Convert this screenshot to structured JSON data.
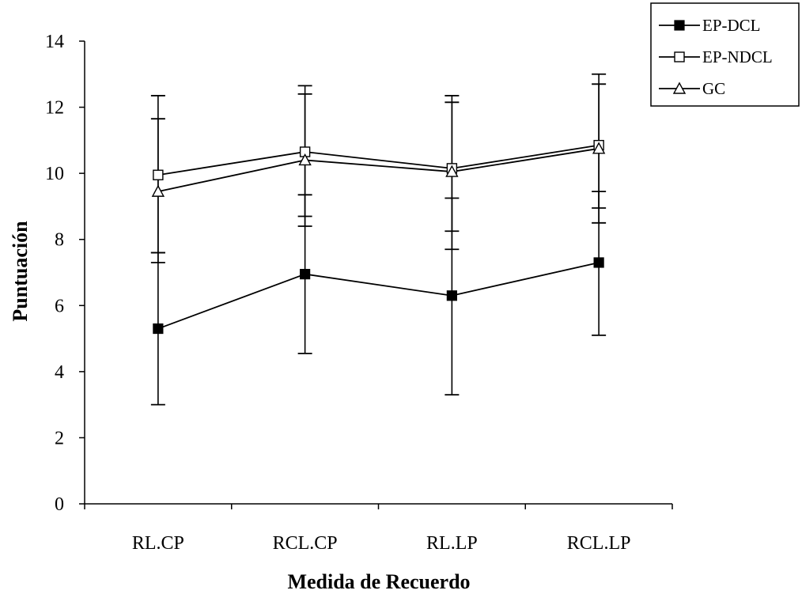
{
  "chart_data": {
    "type": "line",
    "xlabel": "Medida de Recuerdo",
    "ylabel": "Puntuación",
    "ylim": [
      0,
      14
    ],
    "y_ticks": [
      0,
      2,
      4,
      6,
      8,
      10,
      12,
      14
    ],
    "categories": [
      "RL.CP",
      "RCL.CP",
      "RL.LP",
      "RCL.LP"
    ],
    "error_bars": true,
    "legend_position": "top-right",
    "series": [
      {
        "name": "EP-DCL",
        "marker": "filled-square",
        "values": [
          5.3,
          6.95,
          6.3,
          7.3
        ],
        "err_low": [
          3.0,
          4.55,
          3.3,
          5.1
        ],
        "err_high": [
          7.6,
          9.35,
          9.25,
          9.45
        ]
      },
      {
        "name": "EP-NDCL",
        "marker": "open-square",
        "values": [
          9.95,
          10.65,
          10.15,
          10.85
        ],
        "err_low": [
          7.6,
          8.7,
          8.25,
          8.95
        ],
        "err_high": [
          12.35,
          12.65,
          12.35,
          13.0
        ]
      },
      {
        "name": "GC",
        "marker": "open-triangle",
        "values": [
          9.45,
          10.4,
          10.05,
          10.75
        ],
        "err_low": [
          7.3,
          8.4,
          7.7,
          8.5
        ],
        "err_high": [
          11.65,
          12.4,
          12.15,
          12.7
        ]
      }
    ]
  }
}
